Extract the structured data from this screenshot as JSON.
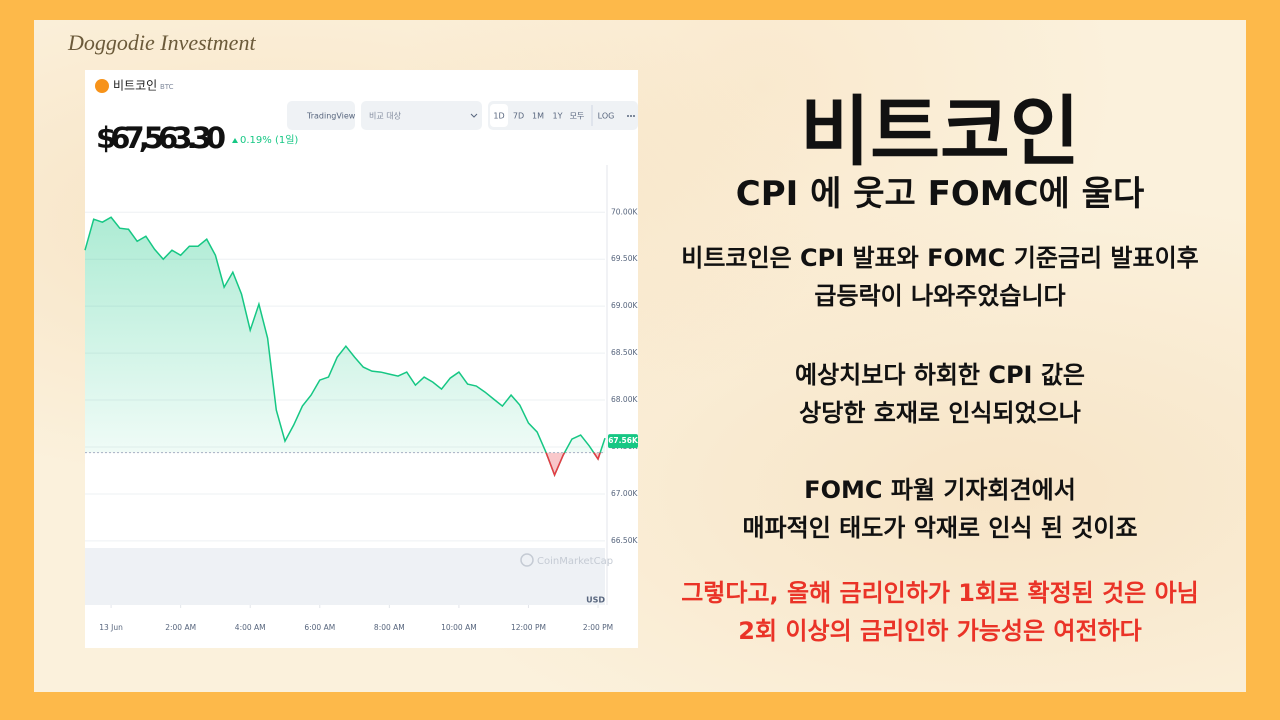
{
  "brand": "Doggodie Investment",
  "chart_data": {
    "type": "line",
    "coin_name": "비트코인",
    "coin_symbol": "BTC",
    "price": "$67,563.30",
    "change": "0.19% (1일)",
    "buttons": {
      "tradingview": "TradingView",
      "compare": "비교 대상",
      "ranges": [
        "1D",
        "7D",
        "1M",
        "1Y",
        "모두"
      ],
      "log": "LOG"
    },
    "x": [
      -0.75,
      -0.5,
      -0.25,
      0,
      0.25,
      0.5,
      0.75,
      1,
      1.25,
      1.5,
      1.75,
      2,
      2.25,
      2.5,
      2.75,
      3,
      3.25,
      3.5,
      3.75,
      4,
      4.25,
      4.5,
      4.75,
      5,
      5.25,
      5.5,
      5.75,
      6,
      6.25,
      6.5,
      6.75,
      7,
      7.25,
      7.5,
      7.75,
      8,
      8.25,
      8.5,
      8.75,
      9,
      9.25,
      9.5,
      9.75,
      10,
      10.25,
      10.5,
      10.75,
      11,
      11.25,
      11.5,
      11.75,
      12,
      12.25,
      12.5,
      12.75,
      13,
      13.25,
      13.5,
      13.75,
      14,
      14.2
    ],
    "values": [
      69596,
      69926,
      69894,
      69947,
      69830,
      69819,
      69691,
      69745,
      69606,
      69500,
      69596,
      69542,
      69638,
      69638,
      69713,
      69542,
      69202,
      69362,
      69128,
      68744,
      69021,
      68659,
      67893,
      67563,
      67734,
      67936,
      68053,
      68213,
      68245,
      68457,
      68574,
      68457,
      68351,
      68308,
      68298,
      68276,
      68255,
      68298,
      68159,
      68245,
      68191,
      68117,
      68234,
      68298,
      68170,
      68149,
      68085,
      68010,
      67936,
      68053,
      67947,
      67755,
      67659,
      67446,
      67202,
      67415,
      67585,
      67627,
      67510,
      67372,
      67595
    ],
    "color_up": "#16c784",
    "color_down": "#ea3943",
    "baseline": 67440,
    "last_price": {
      "value": 67563.3,
      "label": "67.56K"
    },
    "xlim": [
      -0.75,
      14.2
    ],
    "ylim": [
      66350,
      70450
    ],
    "xticks": [
      {
        "value": 0,
        "label": "13 Jun"
      },
      {
        "value": 2,
        "label": "2:00 AM"
      },
      {
        "value": 4,
        "label": "4:00 AM"
      },
      {
        "value": 6,
        "label": "6:00 AM"
      },
      {
        "value": 8,
        "label": "8:00 AM"
      },
      {
        "value": 10,
        "label": "10:00 AM"
      },
      {
        "value": 12,
        "label": "12:00 PM"
      },
      {
        "value": 14,
        "label": "2:00 PM"
      }
    ],
    "yticks": [
      {
        "value": 66500,
        "label": "66.50K"
      },
      {
        "value": 67000,
        "label": "67.00K"
      },
      {
        "value": 67500,
        "label": "67.50K"
      },
      {
        "value": 68000,
        "label": "68.00K"
      },
      {
        "value": 68500,
        "label": "68.50K"
      },
      {
        "value": 69000,
        "label": "69.00K"
      },
      {
        "value": 69500,
        "label": "69.50K"
      },
      {
        "value": 70000,
        "label": "70.00K"
      }
    ],
    "y_unit": "USD",
    "watermark": "CoinMarketCap",
    "grid": true
  },
  "slide": {
    "title": "비트코인",
    "subtitle": "CPI 에 웃고 FOMC에 울다",
    "paragraphs": [
      [
        "비트코인은 CPI 발표와 FOMC 기준금리 발표이후",
        "급등락이 나와주었습니다"
      ],
      [
        "예상치보다 하회한 CPI 값은",
        "상당한 호재로 인식되었으나"
      ],
      [
        "FOMC 파월 기자회견에서",
        "매파적인 태도가 악재로 인식 된 것이죠"
      ]
    ],
    "highlight": [
      "그렇다고, 올해 금리인하가 1회로 확정된 것은 아님",
      "2회 이상의 금리인하 가능성은 여전하다"
    ]
  }
}
